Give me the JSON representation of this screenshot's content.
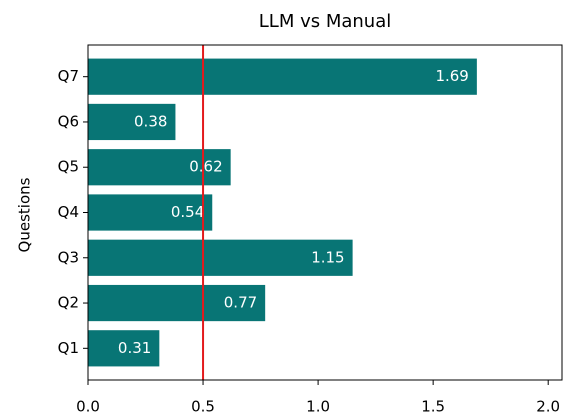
{
  "chart_data": {
    "type": "barh",
    "title": "LLM vs Manual",
    "y_label": "Questions",
    "categories": [
      "Q1",
      "Q2",
      "Q3",
      "Q4",
      "Q5",
      "Q6",
      "Q7"
    ],
    "values": [
      0.31,
      0.77,
      1.15,
      0.54,
      0.62,
      0.38,
      1.69
    ],
    "color": "#087575",
    "xlim": [
      0,
      2.06
    ],
    "xticks": [
      {
        "value": 0,
        "label": "0.0"
      },
      0.5,
      {
        "value": 1,
        "label": "1.0"
      },
      1.5,
      {
        "value": 2,
        "label": "2.0"
      }
    ],
    "reference_line": {
      "value": 0.5,
      "color": "#e31a1c"
    }
  }
}
